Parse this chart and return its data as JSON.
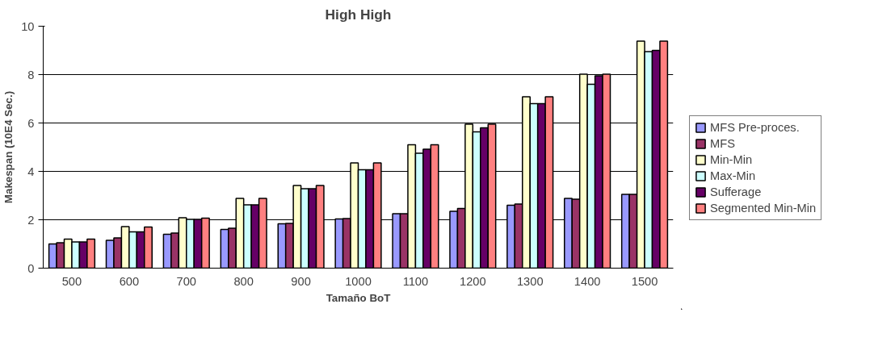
{
  "chart_data": {
    "type": "bar",
    "title": "High High",
    "xlabel": "Tamaño BoT",
    "ylabel": "Makespan (10E4 Sec.)",
    "categories": [
      "500",
      "600",
      "700",
      "800",
      "900",
      "1000",
      "1100",
      "1200",
      "1300",
      "1400",
      "1500"
    ],
    "series": [
      {
        "name": "MFS Pre-proces.",
        "color": "#9999ff",
        "values": [
          1.0,
          1.15,
          1.4,
          1.6,
          1.83,
          2.03,
          2.25,
          2.35,
          2.6,
          2.88,
          3.05
        ]
      },
      {
        "name": "MFS",
        "color": "#993366",
        "values": [
          1.05,
          1.25,
          1.45,
          1.65,
          1.85,
          2.05,
          2.25,
          2.47,
          2.65,
          2.85,
          3.05
        ]
      },
      {
        "name": "Min-Min",
        "color": "#ffffcc",
        "values": [
          1.2,
          1.72,
          2.08,
          2.88,
          3.42,
          4.35,
          5.1,
          5.95,
          7.08,
          8.02,
          9.38
        ]
      },
      {
        "name": "Max-Min",
        "color": "#ccffff",
        "values": [
          1.08,
          1.5,
          2.02,
          2.62,
          3.28,
          4.07,
          4.75,
          5.63,
          6.8,
          7.6,
          8.95
        ]
      },
      {
        "name": "Sufferage",
        "color": "#660066",
        "values": [
          1.08,
          1.5,
          2.02,
          2.62,
          3.28,
          4.07,
          4.92,
          5.8,
          6.8,
          7.95,
          9.0
        ]
      },
      {
        "name": "Segmented Min-Min",
        "color": "#ff8080",
        "values": [
          1.2,
          1.7,
          2.07,
          2.88,
          3.42,
          4.35,
          5.1,
          5.95,
          7.08,
          8.02,
          9.38
        ]
      }
    ],
    "ylim": [
      0,
      10
    ],
    "yticks": [
      0,
      2,
      4,
      6,
      8,
      10
    ],
    "grid": "y",
    "legend": "right"
  }
}
